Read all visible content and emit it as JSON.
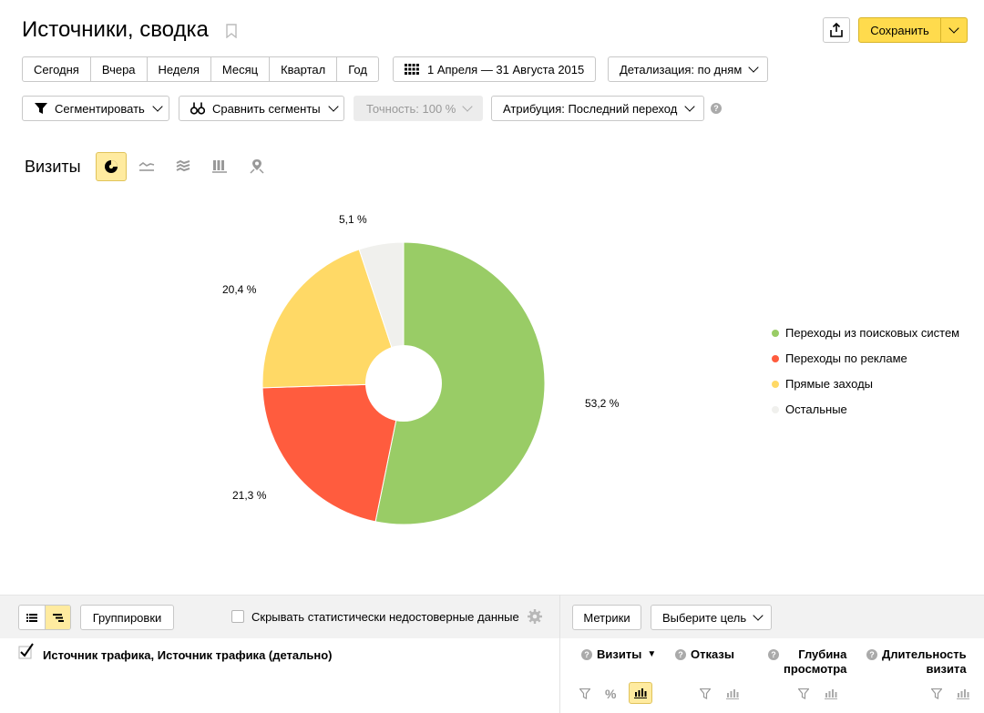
{
  "header": {
    "title": "Источники, сводка",
    "save_label": "Сохранить"
  },
  "periods": [
    "Сегодня",
    "Вчера",
    "Неделя",
    "Месяц",
    "Квартал",
    "Год"
  ],
  "date_range": "1 Апреля — 31 Августа 2015",
  "detail": "Детализация: по дням",
  "toolbar2": {
    "segment": "Сегментировать",
    "compare": "Сравнить сегменты",
    "accuracy": "Точность: 100 %",
    "attribution": "Атрибуция: Последний переход"
  },
  "chart_section": {
    "title": "Визиты",
    "view_icons": [
      "pie-chart-icon",
      "line-chart-icon",
      "area-chart-icon",
      "bar-chart-icon",
      "map-icon"
    ]
  },
  "chart_data": {
    "type": "pie",
    "variant": "donut",
    "series": [
      {
        "name": "Переходы из поисковых систем",
        "value": 53.2,
        "label": "53,2 %",
        "color": "#99cc66"
      },
      {
        "name": "Переходы по рекламе",
        "value": 21.3,
        "label": "21,3 %",
        "color": "#ff5c3e"
      },
      {
        "name": "Прямые заходы",
        "value": 20.4,
        "label": "20,4 %",
        "color": "#ffd966"
      },
      {
        "name": "Остальные",
        "value": 5.1,
        "label": "5,1 %",
        "color": "#f0f0ed"
      }
    ],
    "legend_position": "right"
  },
  "bottom": {
    "groupings": "Группировки",
    "hide_checkbox": "Скрывать статистически недостоверные данные",
    "metrics": "Метрики",
    "goal": "Выберите цель",
    "dimension": "Источник трафика, Источник трафика (детально)",
    "columns": {
      "visits": "Визиты",
      "bounces": "Отказы",
      "depth1": "Глубина",
      "depth2": "просмотра",
      "duration1": "Длительность",
      "duration2": "визита"
    },
    "percent_symbol": "%"
  }
}
